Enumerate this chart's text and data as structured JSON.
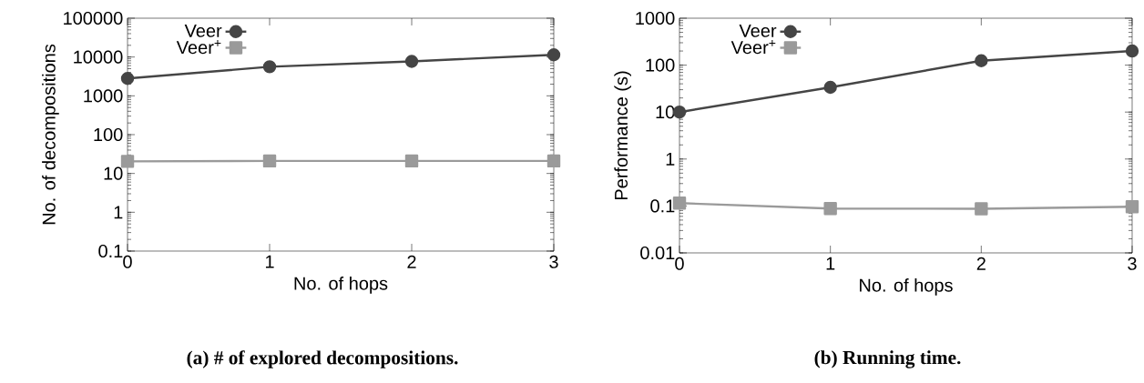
{
  "chart_data": [
    {
      "type": "line",
      "xlabel": "No. of hops",
      "ylabel": "No. of decompositions",
      "x": [
        0,
        1,
        2,
        3
      ],
      "xlim": [
        0,
        3
      ],
      "xticks": [
        0,
        1,
        2,
        3
      ],
      "ylim": [
        0.1,
        100000
      ],
      "yticks": [
        0.1,
        1,
        10,
        100,
        1000,
        10000,
        100000
      ],
      "log": "y",
      "legend": "top left",
      "line_style": "solid",
      "series": [
        {
          "name": "Veer",
          "color": "#454545",
          "marker": "circle",
          "values": [
            2800,
            5600,
            7700,
            11400
          ]
        },
        {
          "name": "Veer$^{+}$",
          "color": "#9a9a9a",
          "marker": "square",
          "values": [
            20.5,
            21,
            21,
            21
          ]
        }
      ],
      "annotations": [
        "(a) # of explored decompositions."
      ]
    },
    {
      "type": "line",
      "xlabel": "No. of hops",
      "ylabel": "Performance (s)",
      "x": [
        0,
        1,
        2,
        3
      ],
      "xlim": [
        0,
        3
      ],
      "xticks": [
        0,
        1,
        2,
        3
      ],
      "ylim": [
        0.01,
        1000
      ],
      "yticks": [
        0.01,
        0.1,
        1,
        10,
        100,
        1000
      ],
      "log": "y",
      "legend": "top left",
      "line_style": "solid",
      "series": [
        {
          "name": "Veer",
          "color": "#454545",
          "marker": "circle",
          "values": [
            10,
            33.7,
            124,
            200
          ]
        },
        {
          "name": "Veer$^{+}$",
          "color": "#9a9a9a",
          "marker": "square",
          "values": [
            0.115,
            0.088,
            0.087,
            0.096
          ]
        }
      ],
      "annotations": [
        "(b) Running time."
      ]
    }
  ]
}
